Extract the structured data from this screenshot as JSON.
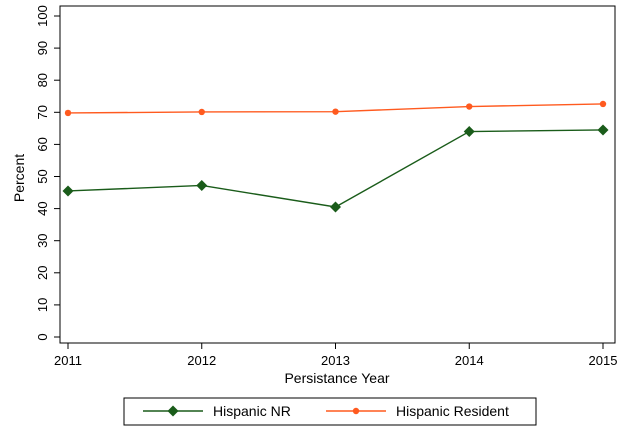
{
  "chart_data": {
    "type": "line",
    "xlabel": "Persistance Year",
    "ylabel": "Percent",
    "x": [
      2011,
      2012,
      2013,
      2014,
      2015
    ],
    "xticks": [
      "2011",
      "2012",
      "2013",
      "2014",
      "2015"
    ],
    "ylim": [
      0,
      100
    ],
    "yticks": [
      "0",
      "10",
      "20",
      "30",
      "40",
      "50",
      "60",
      "70",
      "80",
      "90",
      "100"
    ],
    "grid": false,
    "legend_position": "bottom",
    "series": [
      {
        "name": "Hispanic NR",
        "color": "#1a5c1a",
        "marker": "diamond",
        "values": [
          45.5,
          47.2,
          40.5,
          64.0,
          64.5
        ]
      },
      {
        "name": "Hispanic Resident",
        "color": "#ff5a1f",
        "marker": "circle",
        "values": [
          69.8,
          70.1,
          70.2,
          71.8,
          72.6
        ]
      }
    ]
  }
}
